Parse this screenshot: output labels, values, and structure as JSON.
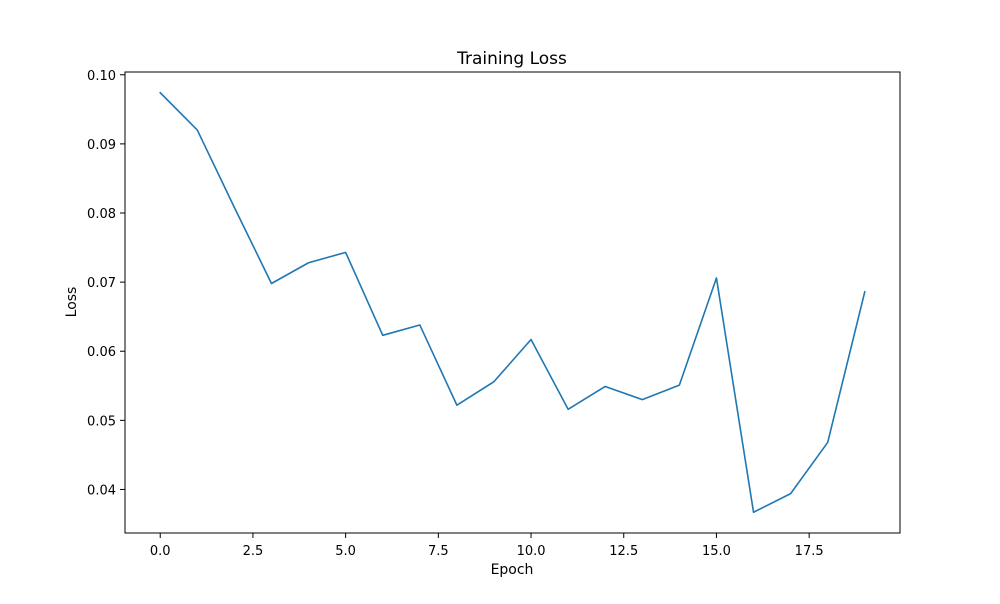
{
  "chart_data": {
    "type": "line",
    "title": "Training Loss",
    "xlabel": "Epoch",
    "ylabel": "Loss",
    "x": [
      0,
      1,
      2,
      3,
      4,
      5,
      6,
      7,
      8,
      9,
      10,
      11,
      12,
      13,
      14,
      15,
      16,
      17,
      18,
      19
    ],
    "series": [
      {
        "name": "",
        "color": "#1f77b4",
        "values": [
          0.0974,
          0.092,
          0.0808,
          0.0698,
          0.0728,
          0.0743,
          0.0623,
          0.0638,
          0.0522,
          0.0556,
          0.0617,
          0.0516,
          0.0549,
          0.053,
          0.0551,
          0.0706,
          0.0367,
          0.0394,
          0.0468,
          0.0686
        ]
      }
    ],
    "xlim": [
      -0.95,
      19.95
    ],
    "ylim": [
      0.0337,
      0.1004
    ],
    "xticks": [
      0.0,
      2.5,
      5.0,
      7.5,
      10.0,
      12.5,
      15.0,
      17.5
    ],
    "xtick_labels": [
      "0.0",
      "2.5",
      "5.0",
      "7.5",
      "10.0",
      "12.5",
      "15.0",
      "17.5"
    ],
    "yticks": [
      0.04,
      0.05,
      0.06,
      0.07,
      0.08,
      0.09,
      0.1
    ],
    "ytick_labels": [
      "0.04",
      "0.05",
      "0.06",
      "0.07",
      "0.08",
      "0.09",
      "0.10"
    ],
    "grid": false,
    "legend": "none"
  }
}
